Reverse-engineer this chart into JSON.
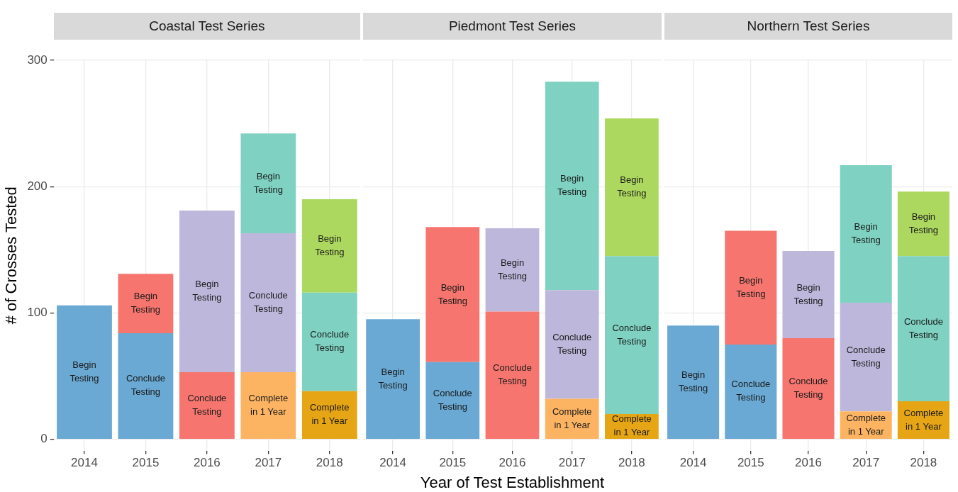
{
  "chart_data": [
    {
      "type": "bar",
      "title": "Coastal Test Series",
      "ylabel": "# of Crosses Tested",
      "categories": [
        "2014",
        "2015",
        "2016",
        "2017",
        "2018"
      ],
      "stacked": true,
      "grid": true,
      "ylim": [
        -9,
        300
      ],
      "yticks": [
        0,
        100,
        200,
        300
      ],
      "series": [
        {
          "color": "#e5a515",
          "values": [
            null,
            null,
            null,
            null,
            38
          ],
          "value_labels": [
            null,
            null,
            null,
            null,
            "Complete in 1 Year"
          ]
        },
        {
          "color": "#fcb462",
          "values": [
            null,
            null,
            null,
            53,
            null
          ],
          "value_labels": [
            null,
            null,
            null,
            "Complete in 1 Year",
            null
          ]
        },
        {
          "color": "#6aa9d3",
          "values": [
            106,
            84,
            null,
            null,
            null
          ],
          "value_labels": [
            "Begin Testing",
            "Conclude Testing",
            null,
            null,
            null
          ]
        },
        {
          "color": "#f6766f",
          "values": [
            null,
            47,
            53,
            null,
            null
          ],
          "value_labels": [
            null,
            "Begin Testing",
            "Conclude Testing",
            null,
            null
          ]
        },
        {
          "color": "#bdb7db",
          "values": [
            null,
            null,
            128,
            110,
            null
          ],
          "value_labels": [
            null,
            null,
            "Begin Testing",
            "Conclude Testing",
            null
          ]
        },
        {
          "color": "#7fd2c2",
          "values": [
            null,
            null,
            null,
            79,
            78
          ],
          "value_labels": [
            null,
            null,
            null,
            "Begin Testing",
            "Conclude Testing"
          ]
        },
        {
          "color": "#add85f",
          "values": [
            null,
            null,
            null,
            null,
            74
          ],
          "value_labels": [
            null,
            null,
            null,
            null,
            "Begin Testing"
          ]
        }
      ]
    },
    {
      "type": "bar",
      "title": "Piedmont Test Series",
      "xlabel": "Year of Test Establishment",
      "categories": [
        "2014",
        "2015",
        "2016",
        "2017",
        "2018"
      ],
      "stacked": true,
      "grid": true,
      "tick_labels": "x",
      "ylim": [
        -9,
        300
      ],
      "yticks": [
        0,
        100,
        200,
        300
      ],
      "series": [
        {
          "color": "#e5a515",
          "values": [
            null,
            null,
            null,
            null,
            20
          ],
          "value_labels": [
            null,
            null,
            null,
            null,
            "Complete in 1 Year"
          ]
        },
        {
          "color": "#fcb462",
          "values": [
            null,
            null,
            null,
            32,
            null
          ],
          "value_labels": [
            null,
            null,
            null,
            "Complete in 1 Year",
            null
          ]
        },
        {
          "color": "#6aa9d3",
          "values": [
            95,
            61,
            null,
            null,
            null
          ],
          "value_labels": [
            "Begin Testing",
            "Conclude Testing",
            null,
            null,
            null
          ]
        },
        {
          "color": "#f6766f",
          "values": [
            null,
            107,
            101,
            null,
            null
          ],
          "value_labels": [
            null,
            "Begin Testing",
            "Conclude Testing",
            null,
            null
          ]
        },
        {
          "color": "#bdb7db",
          "values": [
            null,
            null,
            66,
            86,
            null
          ],
          "value_labels": [
            null,
            null,
            "Begin Testing",
            "Conclude Testing",
            null
          ]
        },
        {
          "color": "#7fd2c2",
          "values": [
            null,
            null,
            null,
            165,
            125
          ],
          "value_labels": [
            null,
            null,
            null,
            "Begin Testing",
            "Conclude Testing"
          ]
        },
        {
          "color": "#add85f",
          "values": [
            null,
            null,
            null,
            null,
            109
          ],
          "value_labels": [
            null,
            null,
            null,
            null,
            "Begin Testing"
          ]
        }
      ]
    },
    {
      "type": "bar",
      "title": "Northern Test Series",
      "categories": [
        "2014",
        "2015",
        "2016",
        "2017",
        "2018"
      ],
      "stacked": true,
      "grid": true,
      "tick_labels": "x",
      "ylim": [
        -9,
        300
      ],
      "yticks": [
        0,
        100,
        200,
        300
      ],
      "series": [
        {
          "color": "#e5a515",
          "values": [
            null,
            null,
            null,
            null,
            30
          ],
          "value_labels": [
            null,
            null,
            null,
            null,
            "Complete in 1 Year"
          ]
        },
        {
          "color": "#fcb462",
          "values": [
            null,
            null,
            null,
            22,
            null
          ],
          "value_labels": [
            null,
            null,
            null,
            "Complete in 1 Year",
            null
          ]
        },
        {
          "color": "#6aa9d3",
          "values": [
            90,
            75,
            null,
            null,
            null
          ],
          "value_labels": [
            "Begin Testing",
            "Conclude Testing",
            null,
            null,
            null
          ]
        },
        {
          "color": "#f6766f",
          "values": [
            null,
            90,
            80,
            null,
            null
          ],
          "value_labels": [
            null,
            "Begin Testing",
            "Conclude Testing",
            null,
            null
          ]
        },
        {
          "color": "#bdb7db",
          "values": [
            null,
            null,
            69,
            86,
            null
          ],
          "value_labels": [
            null,
            null,
            "Begin Testing",
            "Conclude Testing",
            null
          ]
        },
        {
          "color": "#7fd2c2",
          "values": [
            null,
            null,
            null,
            109,
            115
          ],
          "value_labels": [
            null,
            null,
            null,
            "Begin Testing",
            "Conclude Testing"
          ]
        },
        {
          "color": "#add85f",
          "values": [
            null,
            null,
            null,
            null,
            51
          ],
          "value_labels": [
            null,
            null,
            null,
            null,
            "Begin Testing"
          ]
        }
      ]
    }
  ]
}
